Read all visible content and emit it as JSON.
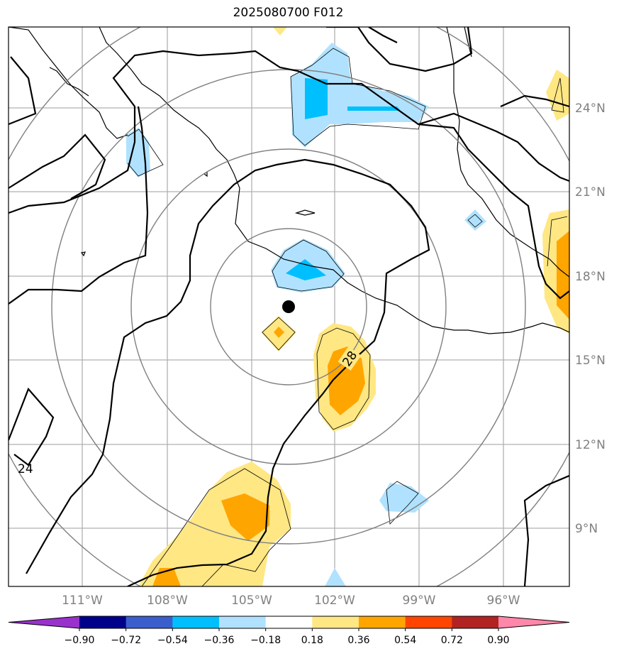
{
  "title": "2025080700 F012",
  "map": {
    "lon_labels": [
      "111°W",
      "108°W",
      "105°W",
      "102°W",
      "99°W",
      "96°W"
    ],
    "lat_labels": [
      "24°N",
      "21°N",
      "18°N",
      "15°N",
      "12°N",
      "9°N"
    ],
    "contour_labels": [
      "28",
      "24"
    ],
    "storm_center": {
      "lat": 16.9,
      "lon": -103.7
    }
  },
  "colorbar": {
    "ticks": [
      "−0.90",
      "−0.72",
      "−0.54",
      "−0.36",
      "−0.18",
      "0.18",
      "0.36",
      "0.54",
      "0.72",
      "0.90"
    ],
    "colors": [
      "#9932cc",
      "#00008b",
      "#3a5fcd",
      "#00bfff",
      "#b0e2ff",
      "#ffffff",
      "#ffe784",
      "#ffa500",
      "#ff4500",
      "#b22222",
      "#ff88aa"
    ]
  }
}
